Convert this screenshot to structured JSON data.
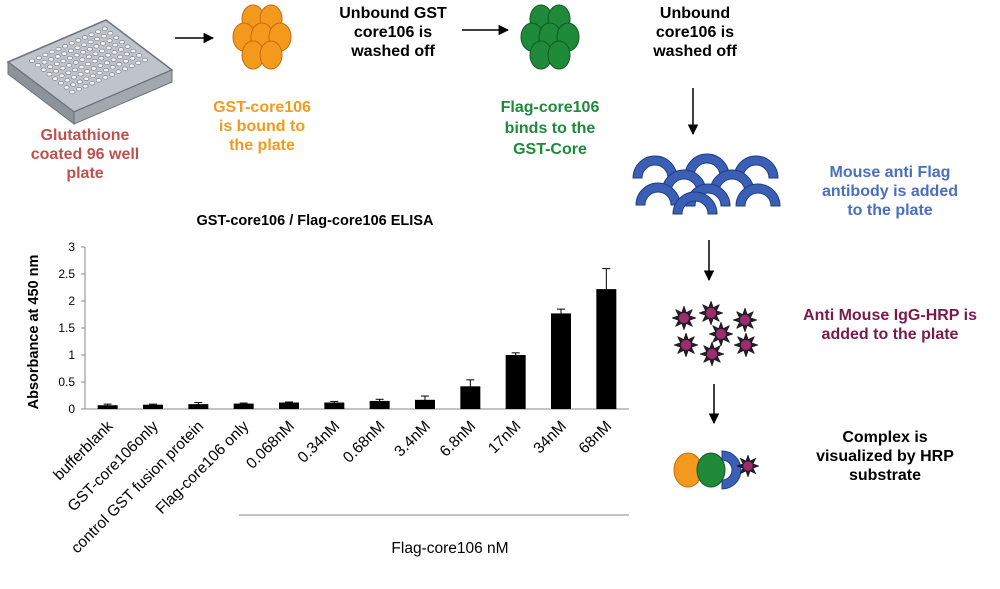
{
  "steps": {
    "plate_label": [
      "Glutathione",
      "coated 96 well",
      "plate"
    ],
    "gst_label": [
      "GST-core106",
      "is bound to",
      "the plate"
    ],
    "wash1_label": [
      "Unbound GST",
      "core106 is",
      "washed off"
    ],
    "flag_label": [
      "Flag-core106",
      "binds to the",
      "GST-Core"
    ],
    "wash2_label": [
      "Unbound",
      "core106 is",
      "washed off"
    ],
    "antiflag_label": [
      "Mouse anti Flag",
      "antibody is added",
      "to the plate"
    ],
    "hrp_label": [
      "Anti Mouse IgG-HRP  is",
      "added to the plate"
    ],
    "complex_label": [
      "Complex is",
      "visualized by HRP",
      "substrate"
    ]
  },
  "colors": {
    "orange": "#f39a1e",
    "green": "#1e8a3a",
    "blue": "#3b5fb5",
    "purple": "#7a1a4a",
    "red_text": "#c0504d"
  },
  "chart_data": {
    "type": "bar",
    "title": "GST-core106 / Flag-core106 ELISA",
    "ylabel": "Absorbance at 450 nm",
    "xlabel": "Flag-core106 nM",
    "ylim": [
      0,
      3
    ],
    "yticks": [
      "0",
      "0.5",
      "1",
      "1.5",
      "2",
      "2.5",
      "3"
    ],
    "categories": [
      "bufferblank",
      "GST-core106only",
      "control GST fusion protein",
      "Flag-core106 only",
      "0.068nM",
      "0.34nM",
      "0.68nM",
      "3.4nM",
      "6.8nM",
      "17nM",
      "34nM",
      "68nM"
    ],
    "values": [
      0.07,
      0.08,
      0.09,
      0.1,
      0.12,
      0.12,
      0.15,
      0.17,
      0.42,
      1.0,
      1.77,
      2.22
    ],
    "errors": [
      0.02,
      0.01,
      0.03,
      0.01,
      0.01,
      0.02,
      0.03,
      0.07,
      0.12,
      0.04,
      0.08,
      0.38
    ],
    "grid": false,
    "legend": false
  }
}
